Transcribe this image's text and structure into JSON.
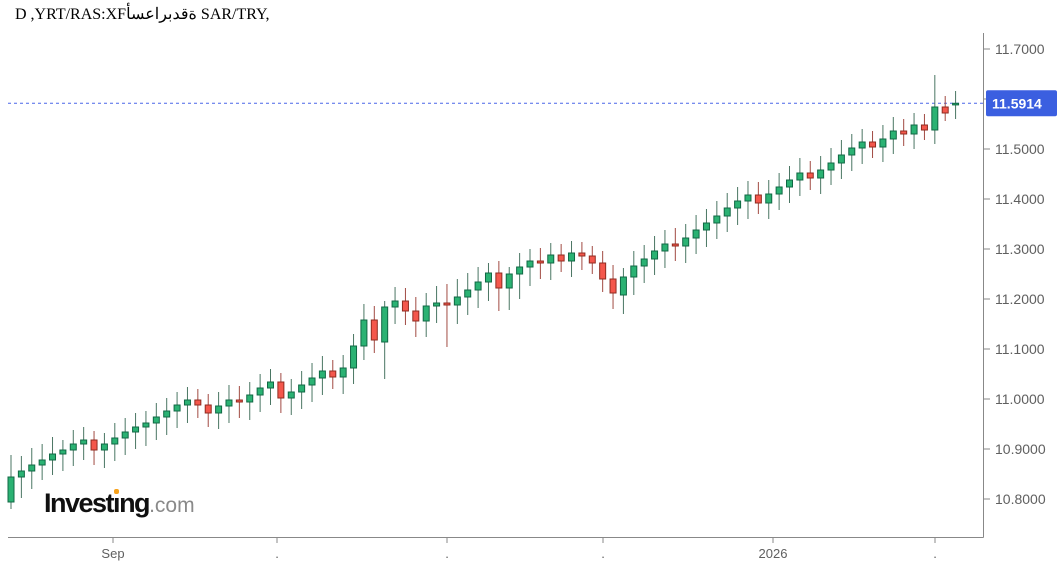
{
  "title": {
    "part1": "D ,YRT/RAS:XF",
    "arabic": "أسعاربدقة",
    "part2": " SAR/TRY,"
  },
  "watermark": {
    "main_pre": "Invest",
    "main_i": "ı",
    "main_post": "ng",
    "suffix": ".com",
    "dot_color": "#f7a11a"
  },
  "chart_data": {
    "type": "candlestick",
    "symbol": "SAR/TRY",
    "exchange_code": "FX:SAR/TRY",
    "timeframe": "D",
    "last_price": 11.5914,
    "last_price_label": "11.5914",
    "y_axis_labels": [
      "11.7000",
      "11.6000",
      "11.5000",
      "11.4000",
      "11.3000",
      "11.2000",
      "11.1000",
      "11.0000",
      "10.9000",
      "10.8000"
    ],
    "y_range_visible": [
      10.724,
      11.732
    ],
    "x_ticks": [
      {
        "x": 113,
        "label": "Sep"
      },
      {
        "x": 277,
        "label": "."
      },
      {
        "x": 447,
        "label": "."
      },
      {
        "x": 603,
        "label": "."
      },
      {
        "x": 773,
        "label": "2026"
      },
      {
        "x": 935,
        "label": "."
      }
    ],
    "grid": false,
    "legend": "none",
    "colors": {
      "up_fill": "#2bb273",
      "up_border": "#10684441",
      "up_border_solid": "#106844",
      "down_fill": "#f4574c",
      "down_border": "#8f2b20",
      "up_wick": "#4a7663",
      "down_wick": "#a14a42",
      "axis_line": "#888888",
      "axis_text": "#5f5f5f",
      "price_line": "#4a66e8",
      "badge_bg": "#3b5fe0",
      "badge_text": "#ffffff"
    },
    "candles": [
      [
        10.794,
        10.888,
        10.78,
        10.844
      ],
      [
        10.844,
        10.886,
        10.802,
        10.856
      ],
      [
        10.856,
        10.902,
        10.82,
        10.868
      ],
      [
        10.868,
        10.91,
        10.838,
        10.878
      ],
      [
        10.878,
        10.924,
        10.848,
        10.89
      ],
      [
        10.89,
        10.918,
        10.856,
        10.898
      ],
      [
        10.898,
        10.938,
        10.866,
        10.91
      ],
      [
        10.91,
        10.944,
        10.878,
        10.918
      ],
      [
        10.918,
        10.936,
        10.868,
        10.898
      ],
      [
        10.898,
        10.932,
        10.862,
        10.91
      ],
      [
        10.91,
        10.952,
        10.876,
        10.922
      ],
      [
        10.922,
        10.962,
        10.888,
        10.934
      ],
      [
        10.934,
        10.972,
        10.9,
        10.944
      ],
      [
        10.944,
        10.976,
        10.906,
        10.952
      ],
      [
        10.952,
        10.992,
        10.918,
        10.964
      ],
      [
        10.964,
        11.002,
        10.928,
        10.976
      ],
      [
        10.976,
        11.014,
        10.942,
        10.988
      ],
      [
        10.988,
        11.024,
        10.952,
        10.998
      ],
      [
        10.998,
        11.02,
        10.962,
        10.988
      ],
      [
        10.988,
        11.01,
        10.944,
        10.972
      ],
      [
        10.972,
        11.014,
        10.94,
        10.986
      ],
      [
        10.986,
        11.028,
        10.952,
        10.998
      ],
      [
        10.998,
        11.026,
        10.962,
        10.994
      ],
      [
        10.994,
        11.034,
        10.958,
        11.008
      ],
      [
        11.008,
        11.05,
        10.974,
        11.022
      ],
      [
        11.022,
        11.06,
        10.988,
        11.034
      ],
      [
        11.034,
        11.052,
        10.972,
        11.002
      ],
      [
        11.002,
        11.04,
        10.968,
        11.014
      ],
      [
        11.014,
        11.056,
        10.98,
        11.028
      ],
      [
        11.028,
        11.072,
        10.994,
        11.042
      ],
      [
        11.042,
        11.086,
        11.008,
        11.056
      ],
      [
        11.056,
        11.078,
        11.02,
        11.044
      ],
      [
        11.044,
        11.088,
        11.01,
        11.062
      ],
      [
        11.062,
        11.13,
        11.03,
        11.106
      ],
      [
        11.106,
        11.19,
        11.078,
        11.158
      ],
      [
        11.158,
        11.186,
        11.092,
        11.118
      ],
      [
        11.114,
        11.196,
        11.04,
        11.184
      ],
      [
        11.184,
        11.224,
        11.15,
        11.196
      ],
      [
        11.196,
        11.222,
        11.148,
        11.176
      ],
      [
        11.176,
        11.204,
        11.124,
        11.156
      ],
      [
        11.156,
        11.212,
        11.124,
        11.186
      ],
      [
        11.186,
        11.226,
        11.152,
        11.192
      ],
      [
        11.192,
        11.23,
        11.104,
        11.188
      ],
      [
        11.188,
        11.24,
        11.15,
        11.204
      ],
      [
        11.204,
        11.252,
        11.168,
        11.218
      ],
      [
        11.218,
        11.264,
        11.182,
        11.234
      ],
      [
        11.234,
        11.272,
        11.196,
        11.252
      ],
      [
        11.252,
        11.276,
        11.176,
        11.222
      ],
      [
        11.222,
        11.264,
        11.178,
        11.25
      ],
      [
        11.25,
        11.292,
        11.2,
        11.264
      ],
      [
        11.264,
        11.3,
        11.226,
        11.276
      ],
      [
        11.276,
        11.302,
        11.24,
        11.272
      ],
      [
        11.272,
        11.312,
        11.238,
        11.288
      ],
      [
        11.288,
        11.31,
        11.254,
        11.276
      ],
      [
        11.276,
        11.316,
        11.244,
        11.292
      ],
      [
        11.292,
        11.314,
        11.258,
        11.286
      ],
      [
        11.286,
        11.306,
        11.25,
        11.272
      ],
      [
        11.272,
        11.296,
        11.214,
        11.24
      ],
      [
        11.24,
        11.268,
        11.18,
        11.212
      ],
      [
        11.208,
        11.262,
        11.17,
        11.244
      ],
      [
        11.244,
        11.296,
        11.208,
        11.266
      ],
      [
        11.266,
        11.308,
        11.232,
        11.28
      ],
      [
        11.28,
        11.326,
        11.248,
        11.296
      ],
      [
        11.296,
        11.338,
        11.262,
        11.31
      ],
      [
        11.31,
        11.342,
        11.276,
        11.306
      ],
      [
        11.306,
        11.35,
        11.272,
        11.322
      ],
      [
        11.322,
        11.368,
        11.29,
        11.338
      ],
      [
        11.338,
        11.38,
        11.304,
        11.352
      ],
      [
        11.352,
        11.396,
        11.32,
        11.366
      ],
      [
        11.366,
        11.412,
        11.334,
        11.382
      ],
      [
        11.382,
        11.424,
        11.348,
        11.396
      ],
      [
        11.396,
        11.436,
        11.36,
        11.408
      ],
      [
        11.408,
        11.434,
        11.37,
        11.392
      ],
      [
        11.392,
        11.438,
        11.36,
        11.41
      ],
      [
        11.41,
        11.452,
        11.378,
        11.424
      ],
      [
        11.424,
        11.466,
        11.392,
        11.438
      ],
      [
        11.438,
        11.482,
        11.406,
        11.452
      ],
      [
        11.452,
        11.476,
        11.418,
        11.442
      ],
      [
        11.442,
        11.486,
        11.41,
        11.458
      ],
      [
        11.458,
        11.502,
        11.428,
        11.472
      ],
      [
        11.472,
        11.518,
        11.44,
        11.488
      ],
      [
        11.488,
        11.53,
        11.456,
        11.502
      ],
      [
        11.502,
        11.54,
        11.47,
        11.514
      ],
      [
        11.514,
        11.536,
        11.482,
        11.504
      ],
      [
        11.504,
        11.548,
        11.474,
        11.52
      ],
      [
        11.52,
        11.564,
        11.49,
        11.536
      ],
      [
        11.536,
        11.56,
        11.506,
        11.53
      ],
      [
        11.53,
        11.572,
        11.5,
        11.548
      ],
      [
        11.548,
        11.57,
        11.518,
        11.538
      ],
      [
        11.538,
        11.648,
        11.51,
        11.584
      ],
      [
        11.584,
        11.606,
        11.556,
        11.572
      ],
      [
        11.59,
        11.616,
        11.56,
        11.5914
      ]
    ]
  }
}
